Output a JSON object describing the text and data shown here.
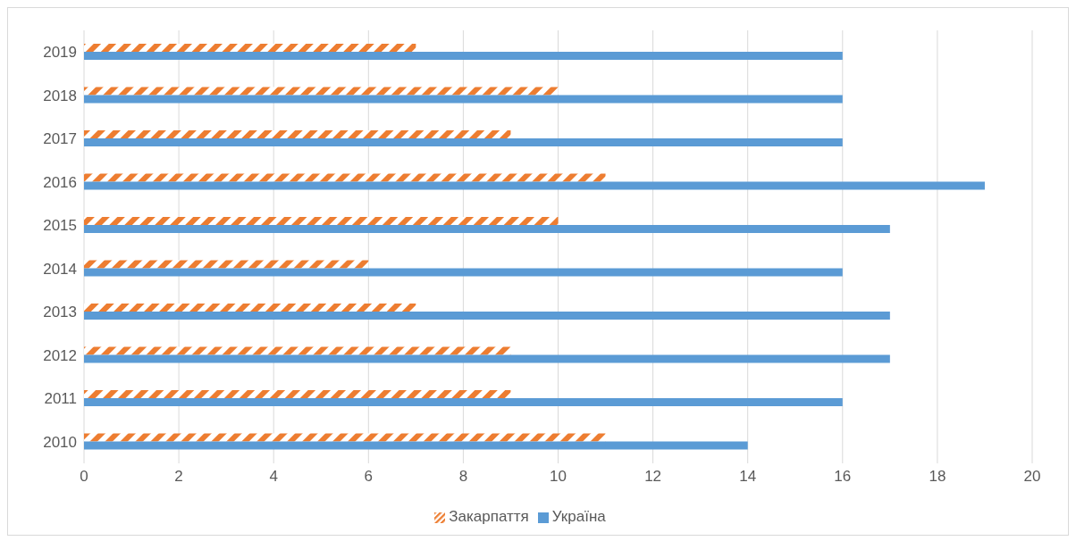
{
  "chart_data": {
    "type": "bar",
    "orientation": "horizontal",
    "categories": [
      "2019",
      "2018",
      "2017",
      "2016",
      "2015",
      "2014",
      "2013",
      "2012",
      "2011",
      "2010"
    ],
    "series": [
      {
        "name": "Закарпаття",
        "color": "#ed7d31",
        "values": [
          7,
          10,
          9,
          11,
          10,
          6,
          7,
          9,
          9,
          11
        ]
      },
      {
        "name": "Україна",
        "color": "#5b9bd5",
        "values": [
          16,
          16,
          16,
          19,
          17,
          16,
          17,
          17,
          16,
          14
        ]
      }
    ],
    "xlim": [
      0,
      20
    ],
    "xticks": [
      0,
      2,
      4,
      6,
      8,
      10,
      12,
      14,
      16,
      18,
      20
    ],
    "grid": "x",
    "legend": "bottom"
  }
}
